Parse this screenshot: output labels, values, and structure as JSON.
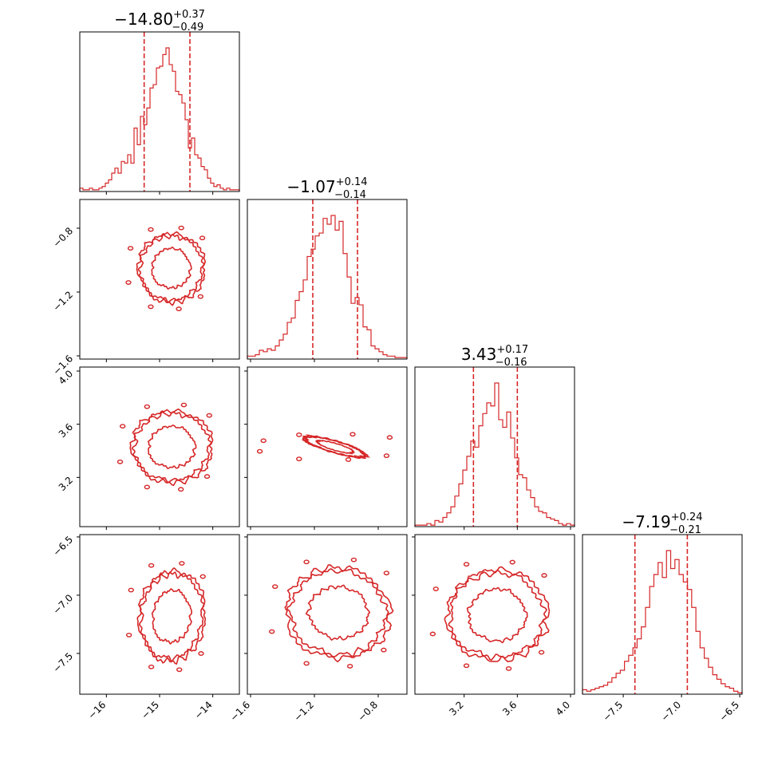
{
  "chart_data": {
    "type": "corner",
    "color": "#d62728",
    "parameters": [
      {
        "median": "−14.80",
        "plus": "+0.37",
        "minus": "−0.49",
        "range": [
          -16.5,
          -13.5
        ],
        "ticks": [
          -16,
          -15,
          -14
        ],
        "tick_labels": [
          "−16",
          "−15",
          "−14"
        ],
        "q_lo": -15.29,
        "q_hi": -14.43
      },
      {
        "median": "−1.07",
        "plus": "+0.14",
        "minus": "−0.14",
        "range": [
          -1.62,
          -0.62
        ],
        "ticks": [
          -1.6,
          -1.2,
          -0.8
        ],
        "tick_labels": [
          "−1.6",
          "−1.2",
          "−0.8"
        ],
        "q_lo": -1.21,
        "q_hi": -0.93
      },
      {
        "median": "3.43",
        "plus": "+0.17",
        "minus": "−0.16",
        "range": [
          2.83,
          4.03
        ],
        "ticks": [
          3.2,
          3.6,
          4.0
        ],
        "tick_labels": [
          "3.2",
          "3.6",
          "4.0"
        ],
        "q_lo": 3.27,
        "q_hi": 3.6
      },
      {
        "median": "−7.19",
        "plus": "+0.24",
        "minus": "−0.21",
        "range": [
          -7.85,
          -6.48
        ],
        "ticks": [
          -7.5,
          -7.0,
          -6.5
        ],
        "tick_labels": [
          "−7.5",
          "−7.0",
          "−6.5"
        ],
        "q_lo": -7.4,
        "q_hi": -6.95
      }
    ],
    "histograms": [
      [
        2,
        1,
        1,
        2,
        1,
        1,
        2,
        3,
        5,
        7,
        11,
        14,
        11,
        18,
        17,
        22,
        17,
        38,
        28,
        45,
        40,
        50,
        62,
        64,
        74,
        75,
        82,
        86,
        76,
        72,
        60,
        58,
        53,
        43,
        26,
        32,
        22,
        20,
        15,
        13,
        8,
        5,
        3,
        4,
        2,
        1,
        2,
        1,
        1,
        1
      ],
      [
        2,
        2,
        3,
        6,
        5,
        7,
        6,
        9,
        13,
        17,
        25,
        28,
        40,
        46,
        54,
        70,
        75,
        84,
        86,
        96,
        92,
        98,
        88,
        94,
        72,
        56,
        38,
        42,
        37,
        22,
        20,
        9,
        7,
        5,
        3,
        2,
        2,
        1,
        1,
        1
      ],
      [
        1,
        1,
        1,
        2,
        1,
        4,
        3,
        6,
        9,
        13,
        20,
        28,
        37,
        46,
        56,
        52,
        66,
        74,
        81,
        79,
        94,
        70,
        65,
        75,
        58,
        45,
        34,
        32,
        24,
        19,
        13,
        10,
        9,
        6,
        5,
        4,
        2,
        1,
        2,
        1
      ],
      [
        3,
        2,
        3,
        4,
        5,
        6,
        8,
        11,
        14,
        16,
        22,
        26,
        31,
        37,
        45,
        58,
        72,
        80,
        88,
        78,
        96,
        84,
        90,
        80,
        75,
        70,
        58,
        42,
        31,
        24,
        18,
        13,
        10,
        7,
        5,
        4,
        2,
        1
      ]
    ],
    "contours": [
      {
        "pair": [
          1,
          0
        ],
        "cx": -14.78,
        "cy": -1.05,
        "rx": 0.58,
        "ry": 0.2,
        "rot": 0,
        "rel": [
          0.62,
          1.0,
          1.08
        ]
      },
      {
        "pair": [
          2,
          0
        ],
        "cx": -14.77,
        "cy": 3.43,
        "rx": 0.7,
        "ry": 0.25,
        "rot": 0,
        "rel": [
          0.62,
          1.0,
          1.08
        ]
      },
      {
        "pair": [
          2,
          1
        ],
        "cx": -1.07,
        "cy": 3.43,
        "rx": 0.34,
        "ry": 0.075,
        "rot": -1,
        "rel": [
          0.62,
          1.0,
          1.08
        ]
      },
      {
        "pair": [
          3,
          0
        ],
        "cx": -14.77,
        "cy": -7.18,
        "rx": 0.58,
        "ry": 0.36,
        "rot": 0.15,
        "rel": [
          0.62,
          1.0,
          1.08
        ]
      },
      {
        "pair": [
          3,
          1
        ],
        "cx": -1.05,
        "cy": -7.15,
        "rx": 0.3,
        "ry": 0.36,
        "rot": 0.12,
        "rel": [
          0.62,
          1.0,
          1.08
        ]
      },
      {
        "pair": [
          3,
          2
        ],
        "cx": 3.45,
        "cy": -7.17,
        "rx": 0.35,
        "ry": 0.36,
        "rot": 0,
        "rel": [
          0.62,
          1.0,
          1.08
        ]
      }
    ]
  }
}
